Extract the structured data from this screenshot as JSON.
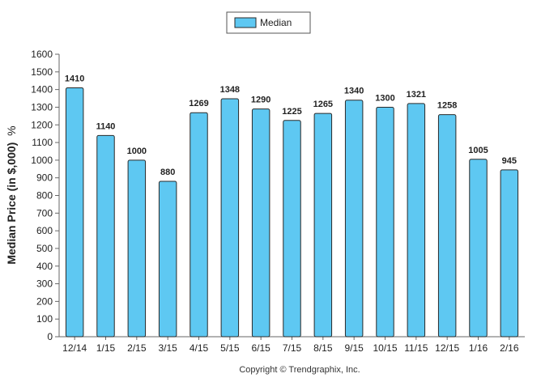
{
  "chart_data": {
    "type": "bar",
    "categories": [
      "12/14",
      "1/15",
      "2/15",
      "3/15",
      "4/15",
      "5/15",
      "6/15",
      "7/15",
      "8/15",
      "9/15",
      "10/15",
      "11/15",
      "12/15",
      "1/16",
      "2/16"
    ],
    "series": [
      {
        "name": "Median",
        "values": [
          1410,
          1140,
          1000,
          880,
          1269,
          1348,
          1290,
          1225,
          1265,
          1340,
          1300,
          1321,
          1258,
          1005,
          945
        ]
      }
    ],
    "ylabel": "Median Price (in $,000)",
    "ylabel_suffix": "%",
    "ylim": [
      0,
      1600
    ],
    "yticks": [
      0,
      100,
      200,
      300,
      400,
      500,
      600,
      700,
      800,
      900,
      1000,
      1100,
      1200,
      1300,
      1400,
      1500,
      1600
    ],
    "legend_position": "top-center",
    "grid": false,
    "data_labels": true,
    "bar_color": "#5ec8f2",
    "footer": "Copyright © Trendgraphix, Inc."
  }
}
